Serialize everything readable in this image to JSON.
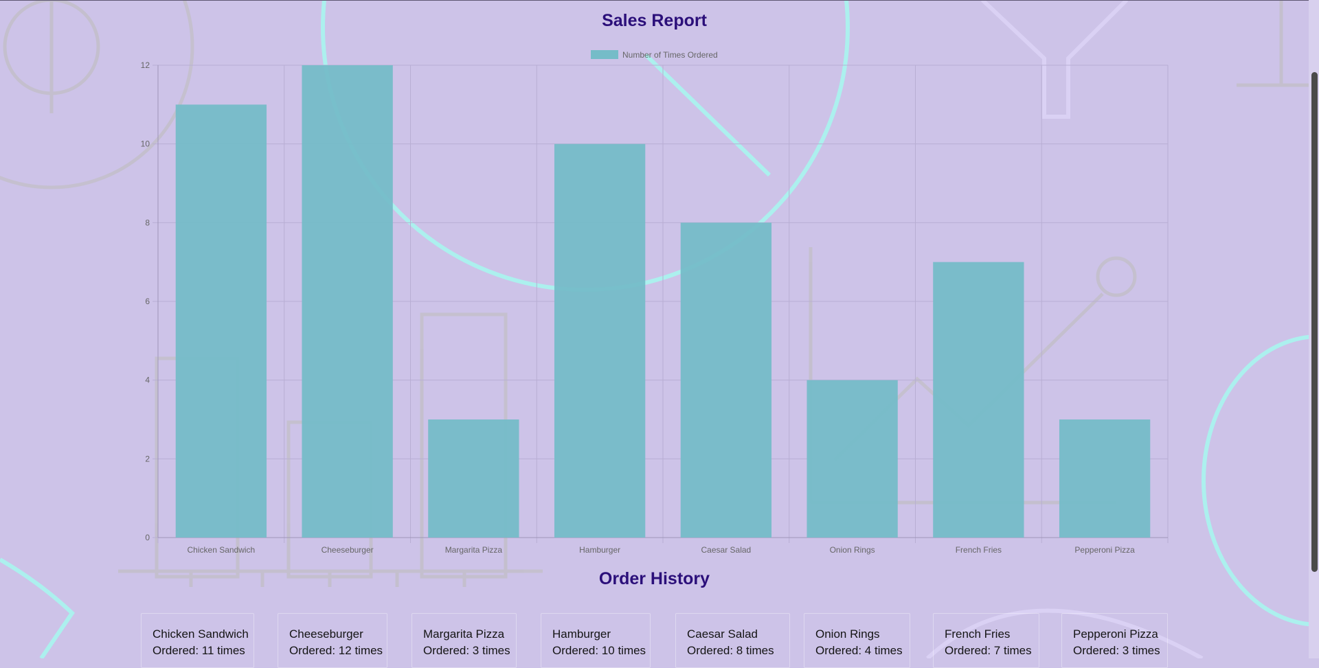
{
  "colors": {
    "background": "#cdc3e8",
    "heading": "#2b0f7a",
    "bar_fill": "#75bcc8",
    "grid": "#b8aed3",
    "text_muted": "#666666",
    "decor_cyan": "#a8f5ee",
    "decor_gray": "#c0bcc8"
  },
  "report": {
    "title": "Sales Report"
  },
  "chart_data": {
    "type": "bar",
    "categories": [
      "Chicken Sandwich",
      "Cheeseburger",
      "Margarita Pizza",
      "Hamburger",
      "Caesar Salad",
      "Onion Rings",
      "French Fries",
      "Pepperoni Pizza"
    ],
    "series": [
      {
        "name": "Number of Times Ordered",
        "values": [
          11,
          12,
          3,
          10,
          8,
          4,
          7,
          3
        ],
        "color": "#75bcc8"
      }
    ],
    "ylim": [
      0,
      12
    ],
    "yticks": [
      0,
      2,
      4,
      6,
      8,
      10,
      12
    ],
    "grid": true,
    "legend_position": "top"
  },
  "history": {
    "title": "Order History",
    "ordered_prefix": "Ordered:",
    "times_suffix": "times",
    "items": [
      {
        "name": "Chicken Sandwich",
        "count": 11
      },
      {
        "name": "Cheeseburger",
        "count": 12
      },
      {
        "name": "Margarita Pizza",
        "count": 3
      },
      {
        "name": "Hamburger",
        "count": 10
      },
      {
        "name": "Caesar Salad",
        "count": 8
      },
      {
        "name": "Onion Rings",
        "count": 4
      },
      {
        "name": "French Fries",
        "count": 7
      },
      {
        "name": "Pepperoni Pizza",
        "count": 3
      }
    ]
  }
}
